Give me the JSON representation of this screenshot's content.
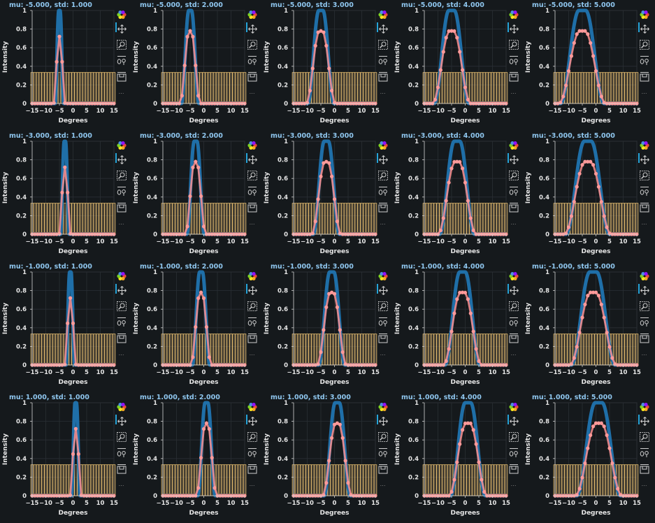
{
  "chart_data": {
    "type": "line",
    "layout": {
      "rows": 4,
      "cols": 5
    },
    "xlabel": "Degrees",
    "ylabel": "Intensity",
    "xlim": [
      -15,
      15
    ],
    "ylim": [
      0,
      1
    ],
    "xticks": [
      -15,
      -10,
      -5,
      0,
      5,
      10,
      15
    ],
    "xtick_labels": [
      "−15",
      "−10",
      "−5",
      "0",
      "5",
      "10",
      "15"
    ],
    "yticks": [
      0,
      0.2,
      0.4,
      0.6,
      0.8,
      1
    ],
    "ytick_labels": [
      "0",
      "0.2",
      "0.4",
      "0.6",
      "0.8",
      "1"
    ],
    "grid": true,
    "x": [
      -15,
      -14,
      -13,
      -12,
      -11,
      -10,
      -9,
      -8,
      -7,
      -6,
      -5,
      -4,
      -3,
      -2,
      -1,
      0,
      1,
      2,
      3,
      4,
      5,
      6,
      7,
      8,
      9,
      10,
      11,
      12,
      13,
      14,
      15
    ],
    "bar_value": 0.333,
    "colors": {
      "true_curve": "#1f6fa8",
      "sampled_curve": "#ff9090",
      "sampled_marker": "#ff9a9a",
      "bars_fill": "#c6a36a",
      "bars_edge": "#ffd27a",
      "title": "#8fc6ee",
      "background": "#15191c"
    },
    "panels": [
      {
        "title": "mu: -5.000, std: 1.000",
        "mu": -5,
        "std": 1
      },
      {
        "title": "mu: -5.000, std: 2.000",
        "mu": -5,
        "std": 2
      },
      {
        "title": "mu: -5.000, std: 3.000",
        "mu": -5,
        "std": 3
      },
      {
        "title": "mu: -5.000, std: 4.000",
        "mu": -5,
        "std": 4
      },
      {
        "title": "mu: -5.000, std: 5.000",
        "mu": -5,
        "std": 5
      },
      {
        "title": "mu: -3.000, std: 1.000",
        "mu": -3,
        "std": 1
      },
      {
        "title": "mu: -3.000, std: 2.000",
        "mu": -3,
        "std": 2
      },
      {
        "title": "mu: -3.000, std: 3.000",
        "mu": -3,
        "std": 3
      },
      {
        "title": "mu: -3.000, std: 4.000",
        "mu": -3,
        "std": 4
      },
      {
        "title": "mu: -3.000, std: 5.000",
        "mu": -3,
        "std": 5
      },
      {
        "title": "mu: -1.000, std: 1.000",
        "mu": -1,
        "std": 1
      },
      {
        "title": "mu: -1.000, std: 2.000",
        "mu": -1,
        "std": 2
      },
      {
        "title": "mu: -1.000, std: 3.000",
        "mu": -1,
        "std": 3
      },
      {
        "title": "mu: -1.000, std: 4.000",
        "mu": -1,
        "std": 4
      },
      {
        "title": "mu: -1.000, std: 5.000",
        "mu": -1,
        "std": 5
      },
      {
        "title": "mu: 1.000, std: 1.000",
        "mu": 1,
        "std": 1
      },
      {
        "title": "mu: 1.000, std: 2.000",
        "mu": 1,
        "std": 2
      },
      {
        "title": "mu: 1.000, std: 3.000",
        "mu": 1,
        "std": 3
      },
      {
        "title": "mu: 1.000, std: 4.000",
        "mu": 1,
        "std": 4
      },
      {
        "title": "mu: 1.000, std: 5.000",
        "mu": 1,
        "std": 5
      }
    ]
  },
  "toolbar": {
    "tools": [
      "logo-icon",
      "pan-icon",
      "box-zoom-icon",
      "wheel-zoom-icon",
      "save-icon"
    ],
    "more_label": "⋯"
  }
}
